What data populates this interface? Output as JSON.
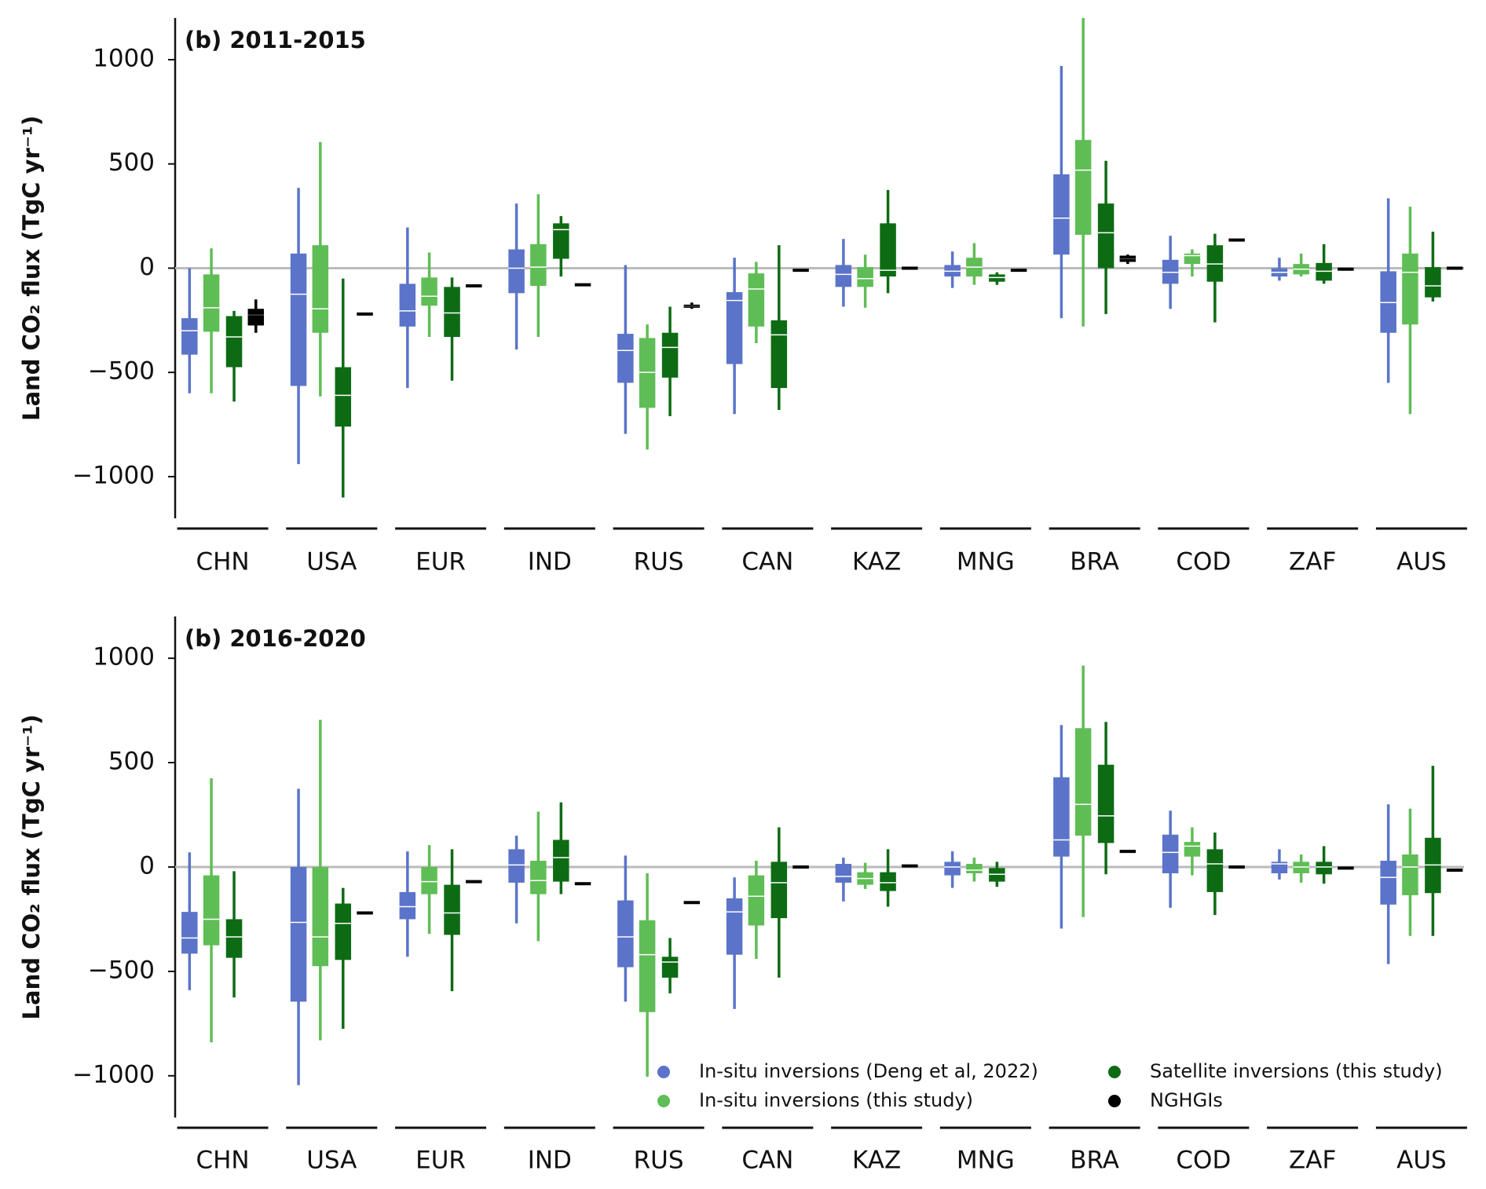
{
  "chart_data": [
    {
      "type": "box",
      "title": "(b) 2011-2015",
      "ylabel": "Land CO₂ flux (TgC yr⁻¹)",
      "categories": [
        "CHN",
        "USA",
        "EUR",
        "IND",
        "RUS",
        "CAN",
        "KAZ",
        "MNG",
        "BRA",
        "COD",
        "ZAF",
        "AUS"
      ],
      "ylim": [
        -1200,
        1200
      ],
      "yticks": [
        {
          "value": -1000,
          "label": "−1000"
        },
        {
          "value": -500,
          "label": "−500"
        },
        0,
        500,
        1000
      ],
      "zero_line": true,
      "series": [
        {
          "color": "#5b74c9",
          "values": [
            [
              -600,
              -415,
              -300,
              -240,
              0
            ],
            [
              -940,
              -565,
              -125,
              70,
              385
            ],
            [
              -575,
              -280,
              -205,
              -75,
              195
            ],
            [
              -390,
              -120,
              0,
              90,
              310
            ],
            [
              -795,
              -550,
              -395,
              -315,
              15
            ],
            [
              -700,
              -460,
              -155,
              -115,
              50
            ],
            [
              -185,
              -90,
              -30,
              15,
              140
            ],
            [
              -95,
              -40,
              -15,
              15,
              80
            ],
            [
              -240,
              65,
              240,
              450,
              970
            ],
            [
              -195,
              -75,
              -20,
              40,
              155
            ],
            [
              -60,
              -40,
              -20,
              0,
              50
            ],
            [
              -550,
              -310,
              -165,
              -15,
              335
            ]
          ]
        },
        {
          "color": "#5fbd55",
          "values": [
            [
              -600,
              -305,
              -190,
              -30,
              95
            ],
            [
              -615,
              -310,
              -195,
              110,
              605
            ],
            [
              -330,
              -180,
              -135,
              -45,
              75
            ],
            [
              -330,
              -85,
              5,
              115,
              355
            ],
            [
              -870,
              -670,
              -500,
              -335,
              -270
            ],
            [
              -360,
              -280,
              -100,
              -25,
              30
            ],
            [
              -190,
              -90,
              -50,
              5,
              65
            ],
            [
              -80,
              -40,
              5,
              50,
              120
            ],
            [
              -280,
              160,
              470,
              615,
              1200
            ],
            [
              -40,
              20,
              60,
              70,
              90
            ],
            [
              -40,
              -30,
              -5,
              20,
              70
            ],
            [
              -700,
              -270,
              -20,
              70,
              295
            ]
          ]
        },
        {
          "color": "#0d6b14",
          "values": [
            [
              -640,
              -475,
              -330,
              -230,
              -205
            ],
            [
              -1100,
              -760,
              -610,
              -475,
              -50
            ],
            [
              -540,
              -330,
              -215,
              -90,
              -45
            ],
            [
              -40,
              45,
              185,
              215,
              250
            ],
            [
              -710,
              -525,
              -380,
              -310,
              -185
            ],
            [
              -680,
              -575,
              -320,
              -250,
              110
            ],
            [
              -120,
              -40,
              -10,
              215,
              375
            ],
            [
              -80,
              -65,
              -45,
              -30,
              -20
            ],
            [
              -220,
              0,
              170,
              310,
              515
            ],
            [
              -260,
              -65,
              20,
              110,
              165
            ],
            [
              -75,
              -60,
              -15,
              25,
              115
            ],
            [
              -160,
              -140,
              -85,
              5,
              175
            ]
          ]
        },
        {
          "color": "#000000",
          "values": [
            [
              -310,
              -275,
              -225,
              -195,
              -150
            ],
            -220,
            -85,
            -80,
            [
              -195,
              -190,
              -182,
              -175,
              -165
            ],
            -10,
            0,
            -10,
            [
              20,
              30,
              45,
              60,
              65
            ],
            135,
            -5,
            0
          ]
        }
      ]
    },
    {
      "type": "box",
      "title": "(b) 2016-2020",
      "ylabel": "Land CO₂ flux (TgC yr⁻¹)",
      "categories": [
        "CHN",
        "USA",
        "EUR",
        "IND",
        "RUS",
        "CAN",
        "KAZ",
        "MNG",
        "BRA",
        "COD",
        "ZAF",
        "AUS"
      ],
      "ylim": [
        -1200,
        1200
      ],
      "yticks": [
        {
          "value": -1000,
          "label": "−1000"
        },
        {
          "value": -500,
          "label": "−500"
        },
        0,
        500,
        1000
      ],
      "zero_line": true,
      "legend": "lower right",
      "series": [
        {
          "name": "In-situ inversions (Deng et al, 2022)",
          "color": "#5b74c9",
          "values": [
            [
              -590,
              -415,
              -340,
              -215,
              70
            ],
            [
              -1045,
              -645,
              -265,
              0,
              375
            ],
            [
              -430,
              -250,
              -190,
              -120,
              75
            ],
            [
              -270,
              -75,
              10,
              85,
              150
            ],
            [
              -645,
              -480,
              -335,
              -160,
              55
            ],
            [
              -680,
              -420,
              -215,
              -150,
              -50
            ],
            [
              -165,
              -75,
              -45,
              15,
              45
            ],
            [
              -100,
              -40,
              0,
              25,
              75
            ],
            [
              -295,
              50,
              130,
              430,
              680
            ],
            [
              -195,
              -30,
              70,
              155,
              270
            ],
            [
              -60,
              -30,
              15,
              25,
              85
            ],
            [
              -465,
              -180,
              -50,
              30,
              300
            ]
          ]
        },
        {
          "name": "In-situ inversions (this study)",
          "color": "#5fbd55",
          "values": [
            [
              -840,
              -375,
              -250,
              -40,
              425
            ],
            [
              -830,
              -475,
              -335,
              0,
              705
            ],
            [
              -320,
              -130,
              -70,
              0,
              105
            ],
            [
              -355,
              -130,
              -65,
              30,
              265
            ],
            [
              -1005,
              -695,
              -420,
              -255,
              -30
            ],
            [
              -440,
              -280,
              -140,
              -40,
              30
            ],
            [
              -105,
              -85,
              -55,
              -25,
              20
            ],
            [
              -70,
              -30,
              -15,
              15,
              45
            ],
            [
              -240,
              150,
              300,
              665,
              965
            ],
            [
              -40,
              50,
              100,
              120,
              190
            ],
            [
              -75,
              -30,
              0,
              25,
              60
            ],
            [
              -330,
              -135,
              0,
              60,
              280
            ]
          ]
        },
        {
          "name": "Satellite inversions (this study)",
          "color": "#0d6b14",
          "values": [
            [
              -625,
              -435,
              -335,
              -250,
              -20
            ],
            [
              -775,
              -445,
              -270,
              -175,
              -100
            ],
            [
              -595,
              -325,
              -220,
              -85,
              85
            ],
            [
              -130,
              -70,
              45,
              130,
              310
            ],
            [
              -605,
              -530,
              -455,
              -430,
              -340
            ],
            [
              -530,
              -245,
              -75,
              25,
              190
            ],
            [
              -190,
              -115,
              -75,
              -25,
              85
            ],
            [
              -95,
              -70,
              -35,
              -5,
              25
            ],
            [
              -35,
              115,
              245,
              490,
              695
            ],
            [
              -230,
              -120,
              15,
              85,
              165
            ],
            [
              -80,
              -35,
              0,
              25,
              100
            ],
            [
              -330,
              -125,
              10,
              140,
              485
            ]
          ]
        },
        {
          "name": "NGHGIs",
          "color": "#000000",
          "values": [
            null,
            -220,
            -70,
            -80,
            -170,
            0,
            5,
            null,
            75,
            0,
            -5,
            -15
          ]
        }
      ]
    }
  ]
}
